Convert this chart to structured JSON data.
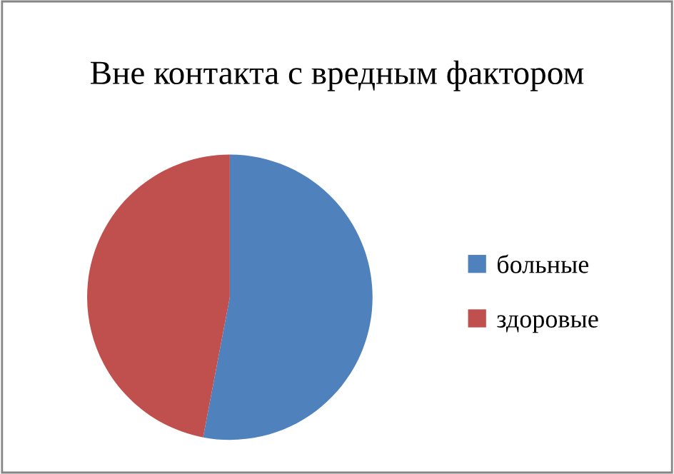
{
  "chart_data": {
    "type": "pie",
    "title": "Вне контакта с вредным фактором",
    "categories": [
      "больные",
      "здоровые"
    ],
    "values": [
      53,
      47
    ],
    "colors": [
      "#4f81bd",
      "#c0504d"
    ],
    "legend": "right"
  }
}
